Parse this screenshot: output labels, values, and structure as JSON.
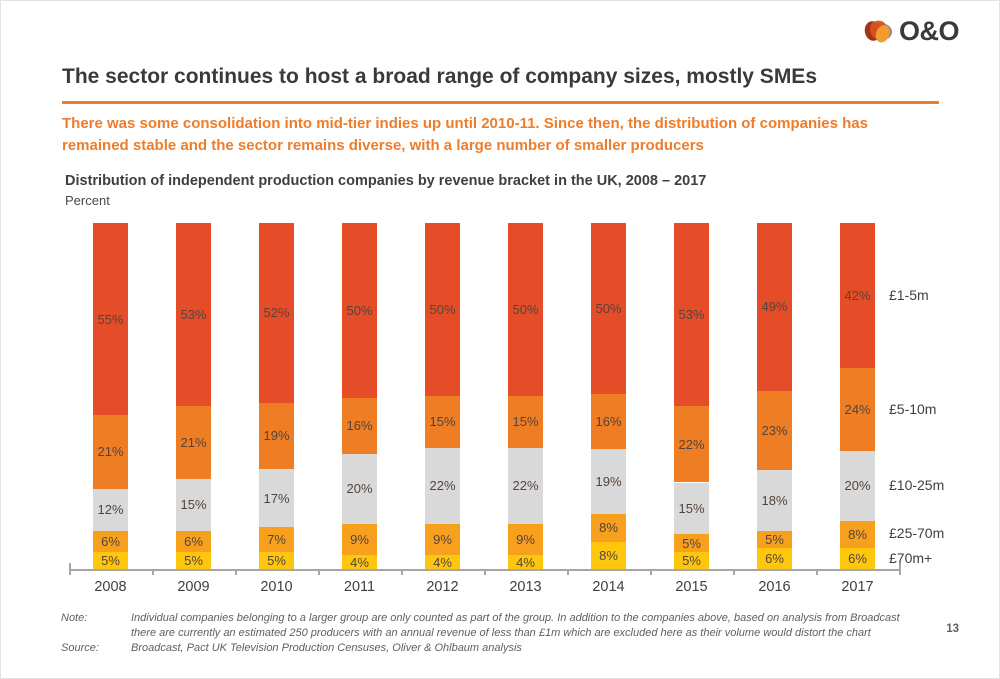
{
  "logo": {
    "text": "O&O"
  },
  "header": {
    "title": "The sector continues to host a broad range of company sizes, mostly SMEs",
    "subtitle": "There was some consolidation into mid-tier indies up until 2010-11. Since then, the distribution of companies has remained stable and the sector remains diverse, with a large number of smaller producers"
  },
  "chart_data": {
    "type": "bar",
    "stacked": true,
    "title": "Distribution of independent production companies by revenue bracket in the UK, 2008 – 2017",
    "unit": "Percent",
    "categories": [
      "2008",
      "2009",
      "2010",
      "2011",
      "2012",
      "2013",
      "2014",
      "2015",
      "2016",
      "2017"
    ],
    "series": [
      {
        "name": "£1-5m",
        "color": "#e54d29",
        "values": [
          55,
          53,
          52,
          50,
          50,
          50,
          50,
          53,
          49,
          42
        ]
      },
      {
        "name": "£5-10m",
        "color": "#ee7d23",
        "values": [
          21,
          21,
          19,
          16,
          15,
          15,
          16,
          22,
          23,
          24
        ]
      },
      {
        "name": "£10-25m",
        "color": "#d9d9d9",
        "values": [
          12,
          15,
          17,
          20,
          22,
          22,
          19,
          15,
          18,
          20
        ]
      },
      {
        "name": "£25-70m",
        "color": "#f7a01e",
        "values": [
          6,
          6,
          7,
          9,
          9,
          9,
          8,
          5,
          5,
          8
        ]
      },
      {
        "name": "£70m+",
        "color": "#ffc60e",
        "values": [
          5,
          5,
          5,
          4,
          4,
          4,
          8,
          5,
          6,
          6
        ]
      }
    ],
    "value_suffix": "%",
    "legend_position": "right",
    "grid": false,
    "y_axis_visible": false
  },
  "footer": {
    "note_label": "Note:",
    "note_text": "Individual companies belonging to a larger group are only counted as part of the group. In addition to the companies above, based on analysis from Broadcast there are currently an estimated 250 producers with an annual revenue of less than £1m which are excluded here as their volume would distort the chart",
    "source_label": "Source:",
    "source_text": "Broadcast, Pact UK Television Production Censuses, Oliver & Ohlbaum analysis",
    "page_number": "13"
  },
  "colors": {
    "accent": "#ed7d2b",
    "title_text": "#3a3a3a",
    "note_text": "#5f5f5f",
    "axis": "#a6a6a6"
  }
}
